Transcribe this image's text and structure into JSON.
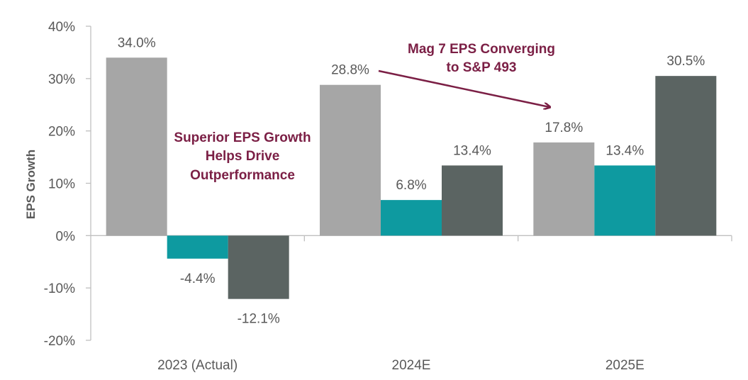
{
  "chart_data": {
    "type": "bar",
    "title": "",
    "xlabel": "",
    "ylabel": "EPS Growth",
    "ylim": [
      -20,
      40
    ],
    "ytick_step": 10,
    "ytick_format": "percent",
    "grid": false,
    "legend": "none",
    "categories": [
      "2023 (Actual)",
      "2024E",
      "2025E"
    ],
    "series": [
      {
        "color": "#a6a6a6",
        "values": [
          34.0,
          28.8,
          17.8
        ],
        "labels": [
          "34.0%",
          "28.8%",
          "17.8%"
        ]
      },
      {
        "color": "#0e9aa0",
        "values": [
          -4.4,
          6.8,
          13.4
        ],
        "labels": [
          "-4.4%",
          "6.8%",
          "13.4%"
        ]
      },
      {
        "color": "#5b6462",
        "values": [
          -12.1,
          13.4,
          30.5
        ],
        "labels": [
          "-12.1%",
          "13.4%",
          "30.5%"
        ]
      }
    ],
    "annotations": [
      {
        "id": "superior",
        "lines": [
          "Superior EPS Growth",
          "Helps Drive",
          "Outperformance"
        ]
      },
      {
        "id": "converging",
        "lines": [
          "Mag 7 EPS Converging",
          "to S&P 493"
        ],
        "arrow": true
      }
    ]
  },
  "colors": {
    "axis": "#bfbfbf",
    "text": "#595959",
    "annotation": "#7b1f45"
  }
}
